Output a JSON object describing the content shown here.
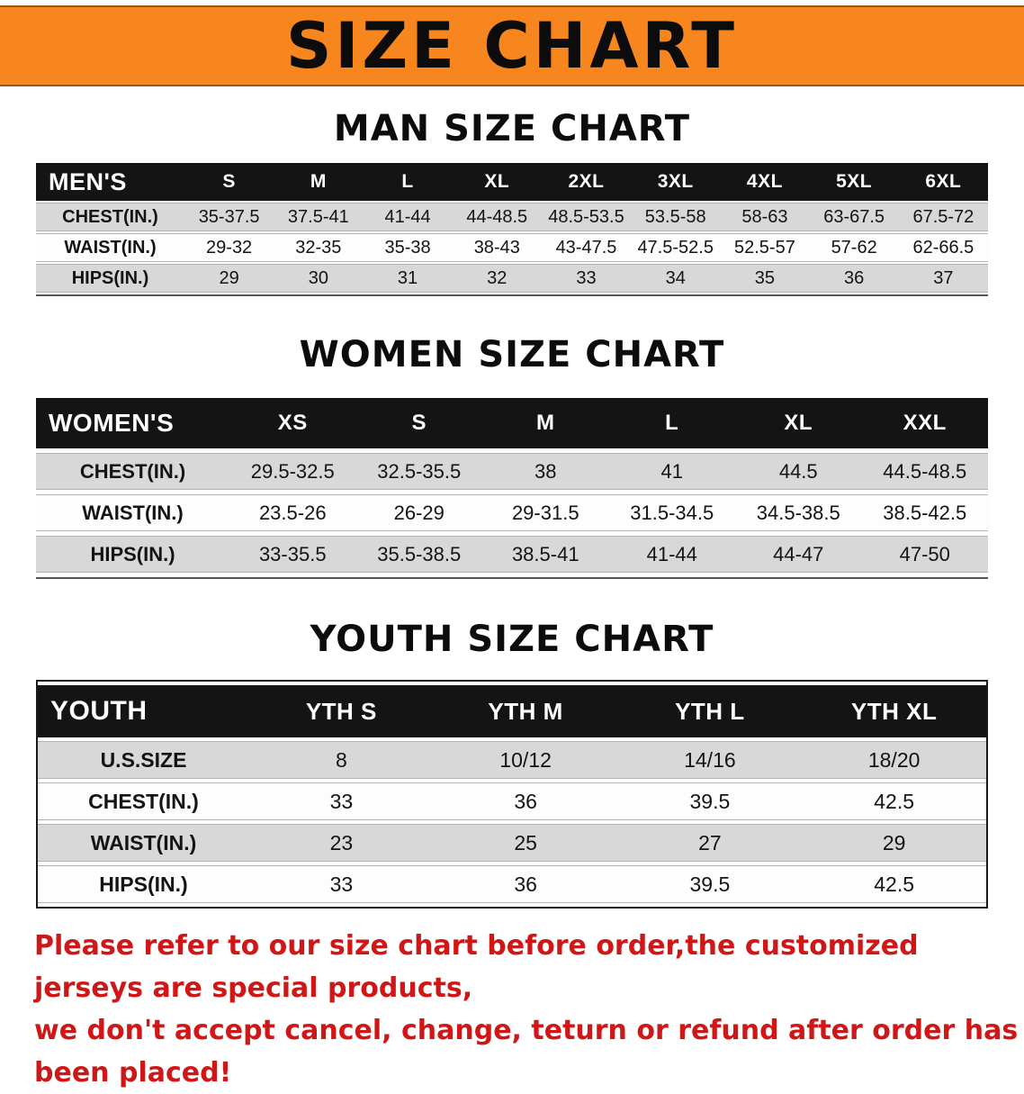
{
  "banner": {
    "title": "SIZE CHART",
    "bg_color": "#f6861d"
  },
  "chart_data": [
    {
      "type": "table",
      "title": "MAN SIZE CHART",
      "columns": [
        "MEN'S",
        "S",
        "M",
        "L",
        "XL",
        "2XL",
        "3XL",
        "4XL",
        "5XL",
        "6XL"
      ],
      "rows": [
        [
          "CHEST(IN.)",
          "35-37.5",
          "37.5-41",
          "41-44",
          "44-48.5",
          "48.5-53.5",
          "53.5-58",
          "58-63",
          "63-67.5",
          "67.5-72"
        ],
        [
          "WAIST(IN.)",
          "29-32",
          "32-35",
          "35-38",
          "38-43",
          "43-47.5",
          "47.5-52.5",
          "52.5-57",
          "57-62",
          "62-66.5"
        ],
        [
          "HIPS(IN.)",
          "29",
          "30",
          "31",
          "32",
          "33",
          "34",
          "35",
          "36",
          "37"
        ]
      ]
    },
    {
      "type": "table",
      "title": "WOMEN SIZE CHART",
      "columns": [
        "WOMEN'S",
        "XS",
        "S",
        "M",
        "L",
        "XL",
        "XXL"
      ],
      "rows": [
        [
          "CHEST(IN.)",
          "29.5-32.5",
          "32.5-35.5",
          "38",
          "41",
          "44.5",
          "44.5-48.5"
        ],
        [
          "WAIST(IN.)",
          "23.5-26",
          "26-29",
          "29-31.5",
          "31.5-34.5",
          "34.5-38.5",
          "38.5-42.5"
        ],
        [
          "HIPS(IN.)",
          "33-35.5",
          "35.5-38.5",
          "38.5-41",
          "41-44",
          "44-47",
          "47-50"
        ]
      ]
    },
    {
      "type": "table",
      "title": "YOUTH SIZE CHART",
      "columns": [
        "YOUTH",
        "YTH S",
        "YTH M",
        "YTH L",
        "YTH XL"
      ],
      "rows": [
        [
          "U.S.SIZE",
          "8",
          "10/12",
          "14/16",
          "18/20"
        ],
        [
          "CHEST(IN.)",
          "33",
          "36",
          "39.5",
          "42.5"
        ],
        [
          "WAIST(IN.)",
          "23",
          "25",
          "27",
          "29"
        ],
        [
          "HIPS(IN.)",
          "33",
          "36",
          "39.5",
          "42.5"
        ]
      ]
    }
  ],
  "footer": {
    "line1": "Please refer to our size chart before order,the customized jerseys are special products,",
    "line2": "we don't accept cancel, change, teturn or refund after order has been placed!",
    "text_color": "#d01717"
  }
}
